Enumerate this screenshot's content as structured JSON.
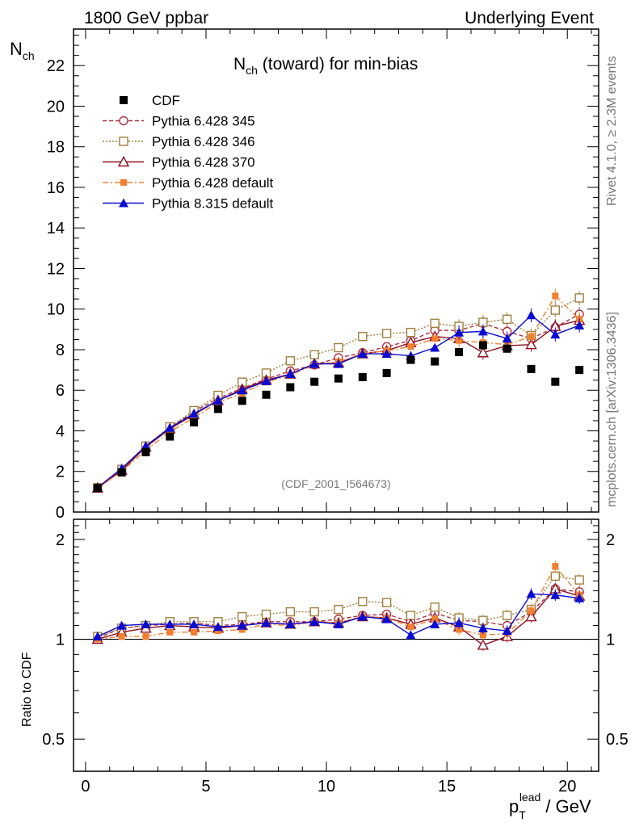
{
  "header": {
    "left": "1800 GeV ppbar",
    "right": "Underlying Event"
  },
  "side": {
    "rivet": "Rivet 4.1.0, ≥ 2.3M events",
    "mcplots": "mcplots.cern.ch [arXiv:1306.3436]"
  },
  "chart_data": {
    "type": "scatter",
    "title_main": "N",
    "title_sub": "ch",
    "title_rest": " (toward) for min-bias",
    "ylabel_main": "N",
    "ylabel_sub": "ch",
    "ratio_ylabel": "Ratio to CDF",
    "xlabel_main": "p",
    "xlabel_sub": "T",
    "xlabel_sup": "lead",
    "xlabel_rest": " / GeV",
    "watermark": "(CDF_2001_I564673)",
    "xlim": [
      -0.5,
      21.3
    ],
    "ylim": [
      0,
      23.8
    ],
    "ratio_ylim": [
      0.4,
      2.3
    ],
    "x_ticks": [
      "0",
      "5",
      "10",
      "15",
      "20"
    ],
    "y_ticks": [
      "0",
      "2",
      "4",
      "6",
      "8",
      "10",
      "12",
      "14",
      "16",
      "18",
      "20",
      "22"
    ],
    "ratio_ticks": [
      "0.5",
      "1",
      "2"
    ],
    "x": [
      0.5,
      1.5,
      2.5,
      3.5,
      4.5,
      5.5,
      6.5,
      7.5,
      8.5,
      9.5,
      10.5,
      11.5,
      12.5,
      13.5,
      14.5,
      15.5,
      16.5,
      17.5,
      18.5,
      19.5,
      20.5
    ],
    "data": {
      "name": "CDF",
      "values": [
        1.18,
        1.95,
        2.95,
        3.72,
        4.42,
        5.08,
        5.48,
        5.78,
        6.15,
        6.42,
        6.58,
        6.65,
        6.85,
        7.5,
        7.42,
        7.88,
        8.22,
        8.05,
        7.05,
        6.42,
        7.0
      ]
    },
    "series": [
      {
        "name": "Pythia 6.428 345",
        "color": "#b03040",
        "marker": "circle-open",
        "dash": "5,3",
        "values": [
          1.2,
          2.1,
          3.25,
          4.15,
          4.95,
          5.6,
          6.1,
          6.55,
          6.95,
          7.25,
          7.6,
          7.85,
          8.15,
          8.45,
          8.95,
          8.95,
          9.3,
          8.9,
          8.55,
          9.1,
          9.75
        ]
      },
      {
        "name": "Pythia 6.428 346",
        "color": "#a08040",
        "marker": "square-open",
        "dash": "2,2",
        "values": [
          1.2,
          2.1,
          3.25,
          4.2,
          5.0,
          5.75,
          6.4,
          6.85,
          7.45,
          7.75,
          8.1,
          8.65,
          8.8,
          8.85,
          9.3,
          9.15,
          9.35,
          9.5,
          8.7,
          9.95,
          10.55
        ]
      },
      {
        "name": "Pythia 6.428 370",
        "color": "#8c1022",
        "marker": "triangle-open",
        "dash": "",
        "values": [
          1.18,
          2.05,
          3.2,
          4.1,
          4.8,
          5.5,
          6.05,
          6.5,
          6.8,
          7.3,
          7.35,
          7.8,
          7.95,
          8.35,
          8.65,
          8.55,
          7.85,
          8.2,
          8.25,
          9.15,
          9.45
        ]
      },
      {
        "name": "Pythia 6.428 default",
        "color": "#f08030",
        "marker": "square-filled",
        "dash": "7,3,2,3",
        "values": [
          1.18,
          2.0,
          3.05,
          3.95,
          4.65,
          5.4,
          5.85,
          6.4,
          6.75,
          7.25,
          7.4,
          7.8,
          7.95,
          8.15,
          8.55,
          8.45,
          8.35,
          8.25,
          8.65,
          10.65,
          9.5
        ]
      },
      {
        "name": "Pythia 8.315 default",
        "color": "#0a0ad2",
        "marker": "triangle-filled",
        "dash": "",
        "values": [
          1.2,
          2.15,
          3.25,
          4.15,
          4.85,
          5.5,
          6.0,
          6.45,
          6.8,
          7.3,
          7.3,
          7.8,
          7.8,
          7.7,
          8.1,
          8.85,
          8.9,
          8.55,
          9.7,
          8.75,
          9.2
        ]
      }
    ],
    "ratios": {
      "Pythia 6.428 345": [
        1.01,
        1.08,
        1.1,
        1.11,
        1.12,
        1.1,
        1.11,
        1.13,
        1.13,
        1.13,
        1.15,
        1.18,
        1.19,
        1.13,
        1.2,
        1.14,
        1.13,
        1.1,
        1.21,
        1.42,
        1.39
      ],
      "Pythia 6.428 346": [
        1.02,
        1.08,
        1.1,
        1.13,
        1.13,
        1.13,
        1.17,
        1.19,
        1.21,
        1.21,
        1.23,
        1.3,
        1.29,
        1.18,
        1.25,
        1.16,
        1.14,
        1.18,
        1.23,
        1.55,
        1.51
      ],
      "Pythia 6.428 370": [
        1.0,
        1.05,
        1.08,
        1.1,
        1.09,
        1.08,
        1.1,
        1.12,
        1.11,
        1.13,
        1.12,
        1.17,
        1.16,
        1.11,
        1.16,
        1.09,
        0.96,
        1.02,
        1.17,
        1.42,
        1.35
      ],
      "Pythia 6.428 default": [
        1.0,
        1.02,
        1.02,
        1.05,
        1.05,
        1.06,
        1.07,
        1.11,
        1.1,
        1.13,
        1.12,
        1.17,
        1.16,
        1.09,
        1.15,
        1.07,
        1.03,
        1.04,
        1.22,
        1.66,
        1.36
      ],
      "Pythia 8.315 default": [
        1.02,
        1.1,
        1.11,
        1.11,
        1.11,
        1.09,
        1.1,
        1.12,
        1.11,
        1.13,
        1.11,
        1.17,
        1.15,
        1.03,
        1.11,
        1.12,
        1.08,
        1.06,
        1.37,
        1.36,
        1.33
      ]
    }
  }
}
